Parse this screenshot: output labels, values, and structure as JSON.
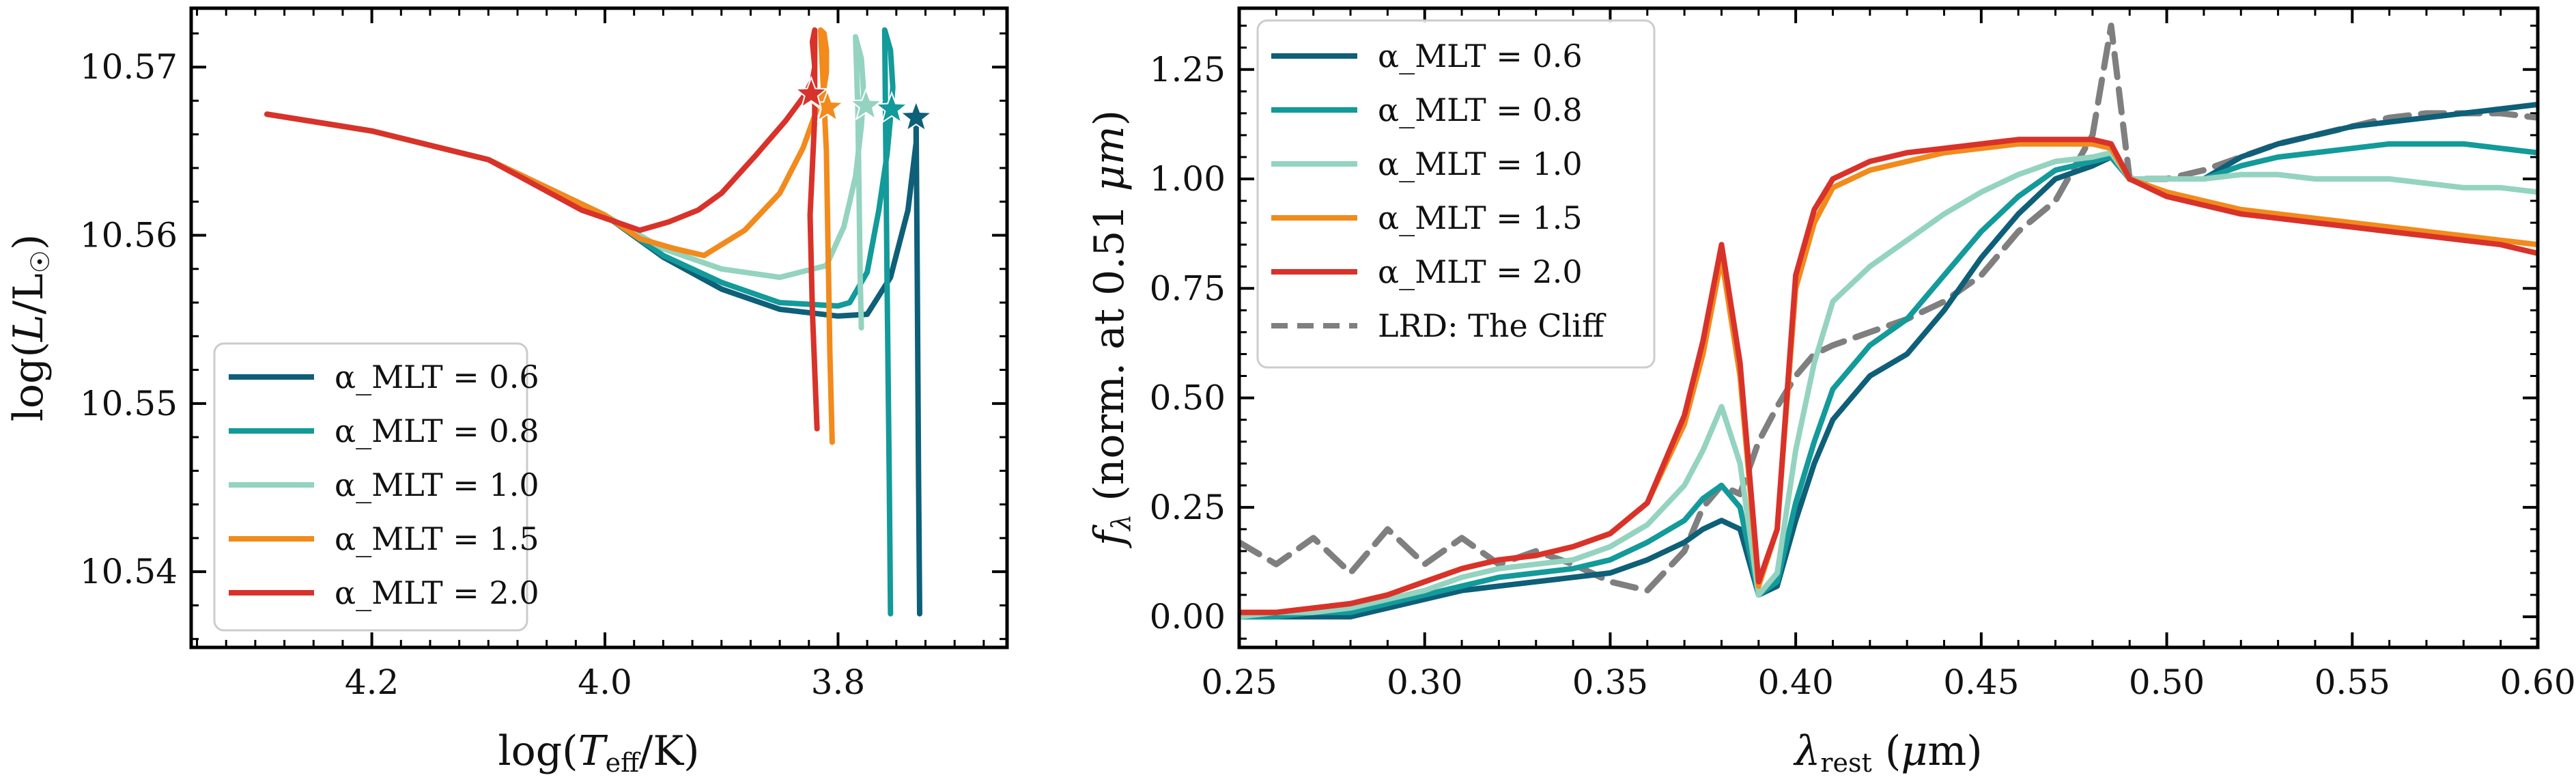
{
  "figure": {
    "background": "#ffffff"
  },
  "chart_data": [
    {
      "type": "line",
      "xlabel": "log(T_eff/K)",
      "ylabel": "log(L/L_☉)",
      "xlim": [
        4.355,
        3.655
      ],
      "ylim": [
        10.5355,
        10.5735
      ],
      "x_inverted": true,
      "grid": false,
      "legend_position": "lower-left",
      "xticks": [
        4.2,
        4.0,
        3.8
      ],
      "xtick_labels": [
        "4.2",
        "4.0",
        "3.8"
      ],
      "yticks": [
        10.54,
        10.55,
        10.56,
        10.57
      ],
      "ytick_labels": [
        "10.54",
        "10.55",
        "10.56",
        "10.57"
      ],
      "series": [
        {
          "name": "α_MLT = 0.6",
          "legend_label": "α_MLT = 0.6",
          "color": "#0e5f78",
          "x": [
            4.29,
            4.2,
            4.1,
            4.0,
            3.95,
            3.9,
            3.85,
            3.8,
            3.775,
            3.755,
            3.74,
            3.733,
            3.733,
            3.732,
            3.731,
            3.73
          ],
          "y": [
            10.5672,
            10.5662,
            10.5645,
            10.5612,
            10.5587,
            10.5568,
            10.5556,
            10.5552,
            10.5553,
            10.5575,
            10.5615,
            10.5655,
            10.5669,
            10.5575,
            10.546,
            10.5375
          ]
        },
        {
          "name": "α_MLT = 0.8",
          "legend_label": "α_MLT = 0.8",
          "color": "#139a9a",
          "x": [
            4.29,
            4.2,
            4.1,
            4.0,
            3.95,
            3.9,
            3.85,
            3.8,
            3.79,
            3.775,
            3.765,
            3.758,
            3.755,
            3.753,
            3.755,
            3.76,
            3.758,
            3.756,
            3.755
          ],
          "y": [
            10.5672,
            10.5662,
            10.5645,
            10.5612,
            10.5588,
            10.5572,
            10.556,
            10.5558,
            10.556,
            10.5578,
            10.5615,
            10.5648,
            10.567,
            10.5688,
            10.571,
            10.5722,
            10.5575,
            10.545,
            10.5375
          ]
        },
        {
          "name": "α_MLT = 1.0",
          "legend_label": "α_MLT = 1.0",
          "color": "#94d3c0",
          "x": [
            4.29,
            4.2,
            4.1,
            4.0,
            3.95,
            3.9,
            3.85,
            3.81,
            3.795,
            3.785,
            3.78,
            3.778,
            3.78,
            3.785,
            3.783,
            3.781,
            3.78
          ],
          "y": [
            10.5672,
            10.5662,
            10.5645,
            10.5612,
            10.5592,
            10.558,
            10.5575,
            10.5582,
            10.5605,
            10.5635,
            10.5665,
            10.5685,
            10.5705,
            10.5718,
            10.5675,
            10.5575,
            10.5545
          ]
        },
        {
          "name": "α_MLT = 1.5",
          "legend_label": "α_MLT = 1.5",
          "color": "#f28a1c",
          "x": [
            4.29,
            4.2,
            4.1,
            4.0,
            3.97,
            3.94,
            3.915,
            3.88,
            3.85,
            3.83,
            3.818,
            3.812,
            3.81,
            3.81,
            3.812,
            3.815,
            3.81,
            3.807,
            3.805
          ],
          "y": [
            10.5672,
            10.5662,
            10.5645,
            10.5612,
            10.5598,
            10.5592,
            10.5588,
            10.5603,
            10.5625,
            10.5652,
            10.5675,
            10.5688,
            10.5697,
            10.571,
            10.572,
            10.5722,
            10.565,
            10.553,
            10.5477
          ]
        },
        {
          "name": "α_MLT = 2.0",
          "legend_label": "α_MLT = 2.0",
          "color": "#d8322a",
          "x": [
            4.29,
            4.2,
            4.1,
            4.02,
            3.97,
            3.945,
            3.92,
            3.9,
            3.87,
            3.845,
            3.83,
            3.822,
            3.82,
            3.822,
            3.82,
            3.82,
            3.824,
            3.822,
            3.818
          ],
          "y": [
            10.5672,
            10.5662,
            10.5645,
            10.5615,
            10.5603,
            10.5608,
            10.5615,
            10.5625,
            10.5648,
            10.5668,
            10.5682,
            10.5692,
            10.57,
            10.5715,
            10.5722,
            10.567,
            10.5612,
            10.5555,
            10.5485
          ]
        }
      ],
      "star_markers": [
        {
          "series": "α_MLT = 0.6",
          "x": 3.733,
          "y": 10.567,
          "color": "#0e5f78"
        },
        {
          "series": "α_MLT = 0.8",
          "x": 3.754,
          "y": 10.5675,
          "color": "#139a9a"
        },
        {
          "series": "α_MLT = 1.0",
          "x": 3.776,
          "y": 10.5677,
          "color": "#94d3c0"
        },
        {
          "series": "α_MLT = 1.5",
          "x": 3.809,
          "y": 10.5676,
          "color": "#f28a1c"
        },
        {
          "series": "α_MLT = 2.0",
          "x": 3.823,
          "y": 10.5684,
          "color": "#d8322a"
        }
      ]
    },
    {
      "type": "line",
      "xlabel": "λ_rest (μm)",
      "ylabel": "f_λ (norm. at 0.51 μm)",
      "xlim": [
        0.25,
        0.6
      ],
      "ylim": [
        -0.07,
        1.39
      ],
      "grid": false,
      "legend_position": "upper-left",
      "xticks": [
        0.25,
        0.3,
        0.35,
        0.4,
        0.45,
        0.5,
        0.55,
        0.6
      ],
      "xtick_labels": [
        "0.25",
        "0.30",
        "0.35",
        "0.40",
        "0.45",
        "0.50",
        "0.55",
        "0.60"
      ],
      "yticks": [
        0.0,
        0.25,
        0.5,
        0.75,
        1.0,
        1.25
      ],
      "ytick_labels": [
        "0.00",
        "0.25",
        "0.50",
        "0.75",
        "1.00",
        "1.25"
      ],
      "x": [
        0.25,
        0.26,
        0.27,
        0.28,
        0.29,
        0.3,
        0.31,
        0.32,
        0.33,
        0.34,
        0.35,
        0.36,
        0.37,
        0.375,
        0.38,
        0.385,
        0.39,
        0.395,
        0.4,
        0.405,
        0.41,
        0.42,
        0.43,
        0.44,
        0.45,
        0.46,
        0.47,
        0.48,
        0.485,
        0.49,
        0.5,
        0.51,
        0.52,
        0.53,
        0.54,
        0.55,
        0.56,
        0.57,
        0.58,
        0.59,
        0.6
      ],
      "series": [
        {
          "name": "α_MLT = 0.6",
          "legend_label": "α_MLT = 0.6",
          "color": "#0e5f78",
          "dashed": false,
          "y": [
            0.0,
            0.0,
            0.0,
            0.0,
            0.02,
            0.04,
            0.06,
            0.07,
            0.08,
            0.09,
            0.1,
            0.13,
            0.17,
            0.2,
            0.22,
            0.2,
            0.05,
            0.07,
            0.22,
            0.35,
            0.45,
            0.55,
            0.6,
            0.7,
            0.82,
            0.92,
            1.0,
            1.03,
            1.05,
            1.0,
            1.0,
            1.0,
            1.05,
            1.08,
            1.1,
            1.12,
            1.13,
            1.14,
            1.15,
            1.16,
            1.17
          ]
        },
        {
          "name": "α_MLT = 0.8",
          "legend_label": "α_MLT = 0.8",
          "color": "#139a9a",
          "dashed": false,
          "y": [
            0.0,
            0.0,
            0.01,
            0.01,
            0.03,
            0.05,
            0.07,
            0.09,
            0.1,
            0.11,
            0.13,
            0.17,
            0.22,
            0.27,
            0.3,
            0.25,
            0.05,
            0.08,
            0.26,
            0.4,
            0.52,
            0.62,
            0.68,
            0.78,
            0.88,
            0.96,
            1.02,
            1.04,
            1.05,
            1.0,
            1.0,
            1.0,
            1.03,
            1.05,
            1.06,
            1.07,
            1.08,
            1.08,
            1.08,
            1.07,
            1.06
          ]
        },
        {
          "name": "α_MLT = 1.0",
          "legend_label": "α_MLT = 1.0",
          "color": "#94d3c0",
          "dashed": false,
          "y": [
            0.0,
            0.01,
            0.01,
            0.02,
            0.04,
            0.06,
            0.09,
            0.11,
            0.12,
            0.13,
            0.16,
            0.21,
            0.3,
            0.38,
            0.48,
            0.35,
            0.05,
            0.1,
            0.38,
            0.58,
            0.72,
            0.8,
            0.86,
            0.92,
            0.97,
            1.01,
            1.04,
            1.05,
            1.06,
            1.0,
            1.0,
            1.0,
            1.01,
            1.01,
            1.0,
            1.0,
            1.0,
            0.99,
            0.98,
            0.98,
            0.97
          ]
        },
        {
          "name": "α_MLT = 1.5",
          "legend_label": "α_MLT = 1.5",
          "color": "#f28a1c",
          "dashed": false,
          "y": [
            0.01,
            0.01,
            0.02,
            0.03,
            0.05,
            0.08,
            0.11,
            0.13,
            0.14,
            0.16,
            0.19,
            0.26,
            0.44,
            0.6,
            0.82,
            0.55,
            0.07,
            0.2,
            0.75,
            0.9,
            0.98,
            1.02,
            1.04,
            1.06,
            1.07,
            1.08,
            1.08,
            1.08,
            1.07,
            1.0,
            0.97,
            0.95,
            0.93,
            0.92,
            0.91,
            0.9,
            0.89,
            0.88,
            0.87,
            0.86,
            0.85
          ]
        },
        {
          "name": "α_MLT = 2.0",
          "legend_label": "α_MLT = 2.0",
          "color": "#d8322a",
          "dashed": false,
          "y": [
            0.01,
            0.01,
            0.02,
            0.03,
            0.05,
            0.08,
            0.11,
            0.13,
            0.14,
            0.16,
            0.19,
            0.26,
            0.46,
            0.63,
            0.85,
            0.58,
            0.08,
            0.2,
            0.78,
            0.93,
            1.0,
            1.04,
            1.06,
            1.07,
            1.08,
            1.09,
            1.09,
            1.09,
            1.08,
            1.0,
            0.96,
            0.94,
            0.92,
            0.91,
            0.9,
            0.89,
            0.88,
            0.87,
            0.86,
            0.85,
            0.83
          ]
        },
        {
          "name": "LRD: The Cliff",
          "legend_label": "LRD: The Cliff",
          "color": "#7f7f7f",
          "dashed": true,
          "y": [
            0.17,
            0.12,
            0.18,
            0.1,
            0.2,
            0.12,
            0.18,
            0.12,
            0.15,
            0.12,
            0.08,
            0.06,
            0.15,
            0.25,
            0.3,
            0.28,
            0.4,
            0.48,
            0.55,
            0.6,
            0.62,
            0.65,
            0.68,
            0.72,
            0.78,
            0.88,
            0.95,
            1.1,
            1.35,
            1.0,
            1.0,
            1.02,
            1.05,
            1.08,
            1.1,
            1.12,
            1.14,
            1.15,
            1.15,
            1.15,
            1.14
          ]
        }
      ]
    }
  ]
}
